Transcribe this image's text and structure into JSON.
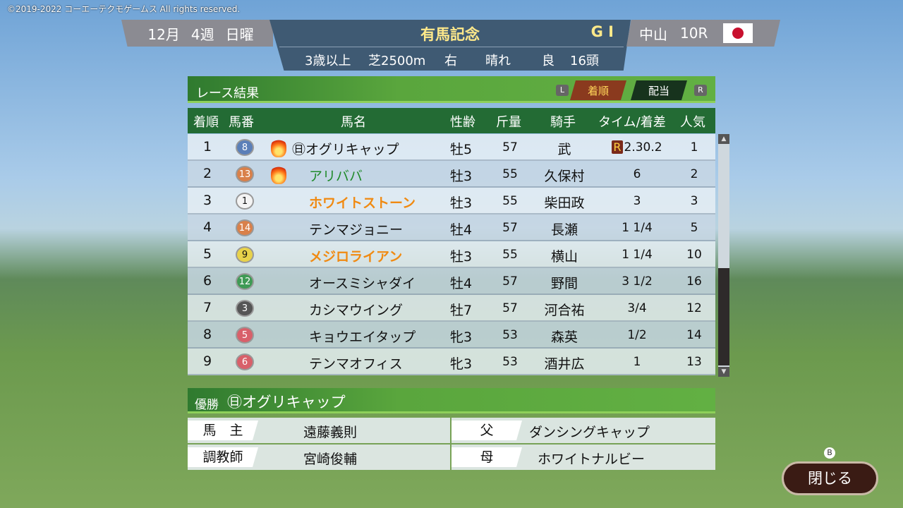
{
  "copyright": "©2019-2022 コーエーテクモゲームス All rights reserved.",
  "header": {
    "month": "12月",
    "week": "4週",
    "day": "日曜",
    "race_name": "有馬記念",
    "grade": "G I",
    "conditions": [
      "3歳以上",
      "芝2500m",
      "右",
      "晴れ",
      "良",
      "16頭"
    ],
    "course": "中山",
    "race_no": "10R",
    "flag": "japan-flag"
  },
  "results": {
    "title": "レース結果",
    "key_left": "L",
    "key_right": "R",
    "tab_active": "着順",
    "tab_other": "配当",
    "columns": [
      "着順",
      "馬番",
      "馬名",
      "性齢",
      "斤量",
      "騎手",
      "タイム/着差",
      "人気"
    ],
    "rows": [
      {
        "rank": "1",
        "num": "8",
        "badge_color": "#5b7fb8",
        "fire": true,
        "prefix": "㊞",
        "name": "㊐オグリキャップ",
        "name_color": "#111",
        "sexage": "牡5",
        "weight": "57",
        "jockey": "武",
        "time_mark": "R",
        "time": "2.30.2",
        "pop": "1"
      },
      {
        "rank": "2",
        "num": "13",
        "badge_color": "#d9804a",
        "fire": true,
        "name": "アリババ",
        "name_color": "#1f8a2a",
        "sexage": "牡3",
        "weight": "55",
        "jockey": "久保村",
        "time": "6",
        "pop": "2"
      },
      {
        "rank": "3",
        "num": "1",
        "badge_color": "#f4f4f4",
        "fire": false,
        "name": "ホワイトストーン",
        "name_color": "#f08a12",
        "sexage": "牡3",
        "weight": "55",
        "jockey": "柴田政",
        "time": "3",
        "pop": "3"
      },
      {
        "rank": "4",
        "num": "14",
        "badge_color": "#d9804a",
        "fire": false,
        "name": "テンマジョニー",
        "name_color": "#111",
        "sexage": "牡4",
        "weight": "57",
        "jockey": "長瀬",
        "time": "1 1/4",
        "pop": "5"
      },
      {
        "rank": "5",
        "num": "9",
        "badge_color": "#e8d24a",
        "fire": false,
        "name": "メジロライアン",
        "name_color": "#f08a12",
        "sexage": "牡3",
        "weight": "55",
        "jockey": "横山",
        "time": "1 1/4",
        "pop": "10"
      },
      {
        "rank": "6",
        "num": "12",
        "badge_color": "#3f9a55",
        "fire": false,
        "name": "オースミシャダイ",
        "name_color": "#111",
        "sexage": "牡4",
        "weight": "57",
        "jockey": "野間",
        "time": "3 1/2",
        "pop": "16"
      },
      {
        "rank": "7",
        "num": "3",
        "badge_color": "#555555",
        "fire": false,
        "name": "カシマウイング",
        "name_color": "#111",
        "sexage": "牡7",
        "weight": "57",
        "jockey": "河合祐",
        "time": "3/4",
        "pop": "12"
      },
      {
        "rank": "8",
        "num": "5",
        "badge_color": "#d8606a",
        "fire": false,
        "name": "キョウエイタップ",
        "name_color": "#111",
        "sexage": "牝3",
        "weight": "53",
        "jockey": "森英",
        "time": "1/2",
        "pop": "14"
      },
      {
        "rank": "9",
        "num": "6",
        "badge_color": "#d8606a",
        "fire": false,
        "name": "テンマオフィス",
        "name_color": "#111",
        "sexage": "牝3",
        "weight": "53",
        "jockey": "酒井広",
        "time": "1",
        "pop": "13"
      }
    ]
  },
  "winner": {
    "label": "優勝",
    "name": "㊐オグリキャップ",
    "owner_label": "馬　主",
    "owner": "遠藤義則",
    "trainer_label": "調教師",
    "trainer": "宮崎俊輔",
    "sire_label": "父",
    "sire": "ダンシングキャップ",
    "dam_label": "母",
    "dam": "ホワイトナルビー"
  },
  "close": {
    "key": "B",
    "label": "閉じる"
  }
}
